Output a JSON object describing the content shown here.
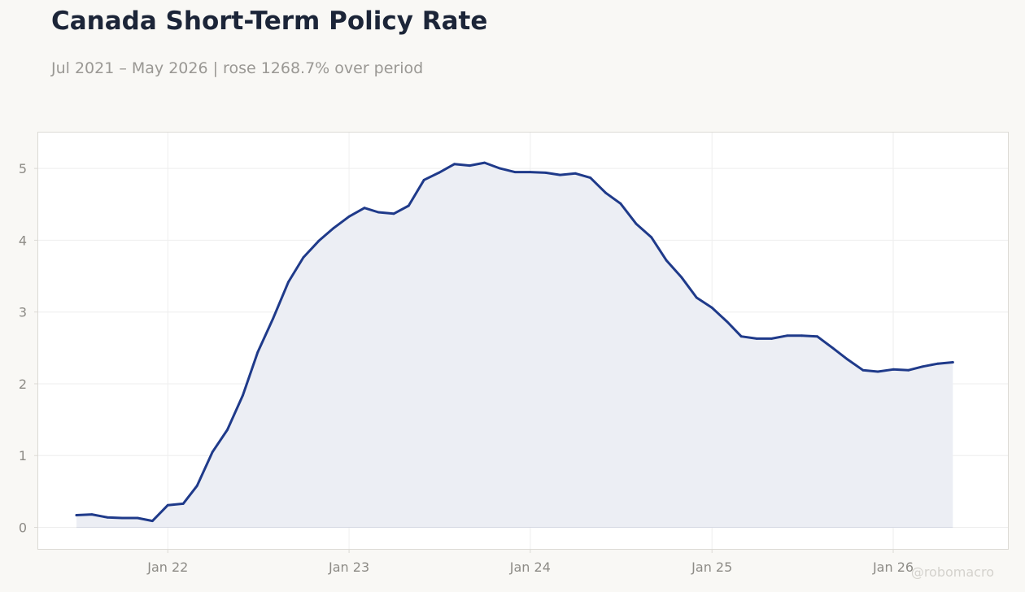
{
  "header": {
    "title": "Canada Short-Term Policy Rate",
    "subtitle": "Jul 2021 – May 2026 | rose 1268.7% over period"
  },
  "watermark": "@robomacro",
  "colors": {
    "line": "#1f3a8a",
    "fill": "#eceef4",
    "grid": "#eeeeee",
    "tick_text": "#8d8b86",
    "frame": "#dcdad5"
  },
  "chart_data": {
    "type": "area",
    "title": "Canada Short-Term Policy Rate",
    "subtitle": "Jul 2021 – May 2026 | rose 1268.7% over period",
    "xlabel": "",
    "ylabel": "",
    "x_start": "2021-07",
    "x_end": "2026-05",
    "xlim": [
      "2021-04-15",
      "2026-08-20"
    ],
    "ylim": [
      -0.3,
      5.5
    ],
    "yticks": [
      0,
      1,
      2,
      3,
      4,
      5
    ],
    "xticks": [
      {
        "date": "2022-01",
        "label": "Jan 22"
      },
      {
        "date": "2023-01",
        "label": "Jan 23"
      },
      {
        "date": "2024-01",
        "label": "Jan 24"
      },
      {
        "date": "2025-01",
        "label": "Jan 25"
      },
      {
        "date": "2026-01",
        "label": "Jan 26"
      }
    ],
    "grid": true,
    "series": [
      {
        "x": [
          "2021-07",
          "2021-08",
          "2021-09",
          "2021-10",
          "2021-11",
          "2021-12",
          "2022-01",
          "2022-02",
          "2022-03",
          "2022-04",
          "2022-05",
          "2022-06",
          "2022-07",
          "2022-08",
          "2022-09",
          "2022-10",
          "2022-11",
          "2022-12",
          "2023-01",
          "2023-02",
          "2023-03",
          "2023-04",
          "2023-05",
          "2023-06",
          "2023-07",
          "2023-08",
          "2023-09",
          "2023-10",
          "2023-11",
          "2023-12",
          "2024-01",
          "2024-02",
          "2024-03",
          "2024-04",
          "2024-05",
          "2024-06",
          "2024-07",
          "2024-08",
          "2024-09",
          "2024-10",
          "2024-11",
          "2024-12",
          "2025-01",
          "2025-02",
          "2025-03",
          "2025-04",
          "2025-05",
          "2025-06",
          "2025-07",
          "2025-08",
          "2025-09",
          "2025-10",
          "2025-11",
          "2025-12",
          "2026-01",
          "2026-02",
          "2026-03",
          "2026-04",
          "2026-05"
        ],
        "values": [
          0.17,
          0.18,
          0.14,
          0.13,
          0.13,
          0.09,
          0.31,
          0.33,
          0.58,
          1.05,
          1.36,
          1.84,
          2.44,
          2.91,
          3.42,
          3.76,
          3.99,
          4.17,
          4.33,
          4.45,
          4.39,
          4.37,
          4.48,
          4.84,
          4.94,
          5.06,
          5.04,
          5.08,
          5.0,
          4.95,
          4.95,
          4.94,
          4.91,
          4.93,
          4.87,
          4.66,
          4.51,
          4.23,
          4.04,
          3.72,
          3.48,
          3.2,
          3.06,
          2.86,
          2.66,
          2.63,
          2.63,
          2.67,
          2.67,
          2.66,
          2.5,
          2.34,
          2.19,
          2.17,
          2.2,
          2.19,
          2.24,
          2.28,
          2.3
        ]
      }
    ]
  }
}
